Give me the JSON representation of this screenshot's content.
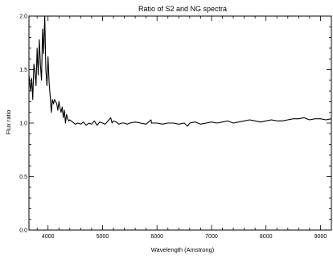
{
  "chart_data": {
    "type": "line",
    "title": "Ratio of S2 and NG spectra",
    "xlabel": "Wavelength (Amstrong)",
    "ylabel": "Flux ratio",
    "xlim": [
      3650,
      9200
    ],
    "ylim": [
      0.0,
      2.0
    ],
    "xticks": [
      4000,
      5000,
      6000,
      7000,
      8000,
      9000
    ],
    "yticks": [
      0.0,
      0.5,
      1.0,
      1.5,
      2.0
    ],
    "ytick_labels": [
      "0.0",
      "0.5",
      "1.0",
      "1.5",
      "2.0"
    ],
    "grid": false,
    "line_color": "#000000",
    "series": [
      {
        "x": [
          3650,
          3680,
          3700,
          3720,
          3740,
          3760,
          3780,
          3800,
          3820,
          3840,
          3860,
          3880,
          3900,
          3920,
          3940,
          3960,
          3980,
          4000,
          4020,
          4040,
          4060,
          4080,
          4100,
          4120,
          4140,
          4160,
          4180,
          4200,
          4220,
          4240,
          4260,
          4280,
          4300,
          4320,
          4340,
          4360,
          4380,
          4400,
          4450,
          4500,
          4550,
          4600,
          4650,
          4700,
          4750,
          4800,
          4850,
          4900,
          4950,
          5000,
          5050,
          5100,
          5150,
          5175,
          5200,
          5250,
          5300,
          5350,
          5400,
          5450,
          5500,
          5600,
          5700,
          5800,
          5890,
          5900,
          6000,
          6100,
          6200,
          6300,
          6400,
          6500,
          6560,
          6600,
          6700,
          6800,
          6900,
          7000,
          7100,
          7200,
          7300,
          7400,
          7500,
          7600,
          7700,
          7800,
          7900,
          8000,
          8100,
          8200,
          8300,
          8400,
          8500,
          8600,
          8700,
          8800,
          8900,
          9000,
          9100,
          9200
        ],
        "values": [
          1.45,
          1.3,
          1.42,
          1.22,
          1.55,
          1.48,
          1.35,
          1.7,
          1.45,
          1.78,
          1.55,
          1.4,
          1.88,
          1.65,
          2.0,
          1.5,
          1.35,
          1.62,
          1.38,
          1.25,
          1.1,
          1.22,
          1.18,
          1.22,
          1.2,
          1.18,
          1.12,
          1.2,
          1.14,
          1.1,
          1.15,
          1.05,
          1.12,
          1.0,
          1.08,
          1.04,
          1.02,
          1.03,
          1.01,
          0.99,
          1.0,
          0.99,
          1.01,
          0.98,
          1.0,
          0.99,
          1.02,
          0.98,
          1.01,
          1.0,
          0.99,
          1.02,
          1.05,
          1.0,
          1.02,
          1.01,
          0.99,
          1.0,
          1.0,
          0.99,
          1.0,
          1.01,
          1.0,
          0.99,
          1.03,
          1.0,
          1.0,
          0.99,
          1.0,
          1.0,
          0.99,
          1.0,
          0.97,
          1.0,
          1.01,
          0.99,
          1.0,
          1.01,
          1.0,
          1.01,
          1.02,
          1.0,
          1.01,
          1.02,
          1.03,
          1.02,
          1.01,
          1.02,
          1.03,
          1.02,
          1.02,
          1.03,
          1.04,
          1.04,
          1.05,
          1.03,
          1.04,
          1.04,
          1.03,
          1.04
        ]
      }
    ]
  }
}
